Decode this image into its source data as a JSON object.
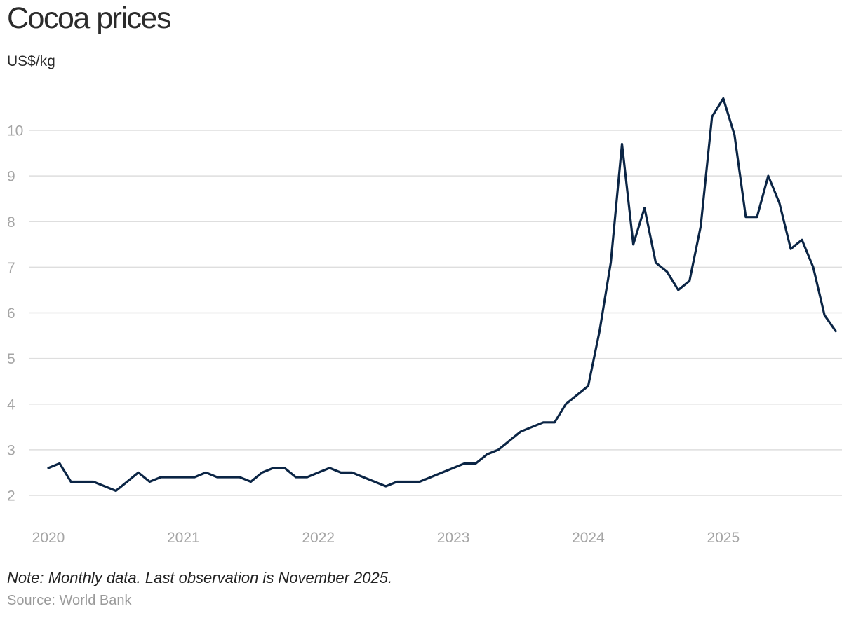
{
  "header": {
    "title": "Cocoa prices",
    "unit_label": "US$/kg"
  },
  "footer": {
    "note": "Note: Monthly data. Last observation is November 2025.",
    "source": "Source: World Bank"
  },
  "colors": {
    "line": "#0b2545",
    "grid": "#dedede",
    "tick_text": "#a5a5a5"
  },
  "chart_data": {
    "type": "line",
    "title": "Cocoa prices",
    "ylabel": "US$/kg",
    "xlabel": "",
    "ylim": [
      2,
      10
    ],
    "yticks": [
      2,
      3,
      4,
      5,
      6,
      7,
      8,
      9,
      10
    ],
    "xticks": [
      "2020",
      "2021",
      "2022",
      "2023",
      "2024",
      "2025"
    ],
    "grid": true,
    "series": [
      {
        "name": "Cocoa price",
        "start": "2020-01",
        "frequency": "monthly",
        "values": [
          2.6,
          2.7,
          2.3,
          2.3,
          2.3,
          2.2,
          2.1,
          2.3,
          2.5,
          2.3,
          2.4,
          2.4,
          2.4,
          2.4,
          2.5,
          2.4,
          2.4,
          2.4,
          2.3,
          2.5,
          2.6,
          2.6,
          2.4,
          2.4,
          2.5,
          2.6,
          2.5,
          2.5,
          2.4,
          2.3,
          2.2,
          2.3,
          2.3,
          2.3,
          2.4,
          2.5,
          2.6,
          2.7,
          2.7,
          2.9,
          3.0,
          3.2,
          3.4,
          3.5,
          3.6,
          3.6,
          4.0,
          4.2,
          4.4,
          5.6,
          7.1,
          9.7,
          7.5,
          8.3,
          7.1,
          6.9,
          6.5,
          6.7,
          7.9,
          10.3,
          10.7,
          9.9,
          8.1,
          8.1,
          9.0,
          8.4,
          7.4,
          7.6,
          7.0,
          5.95,
          5.6
        ]
      }
    ]
  }
}
